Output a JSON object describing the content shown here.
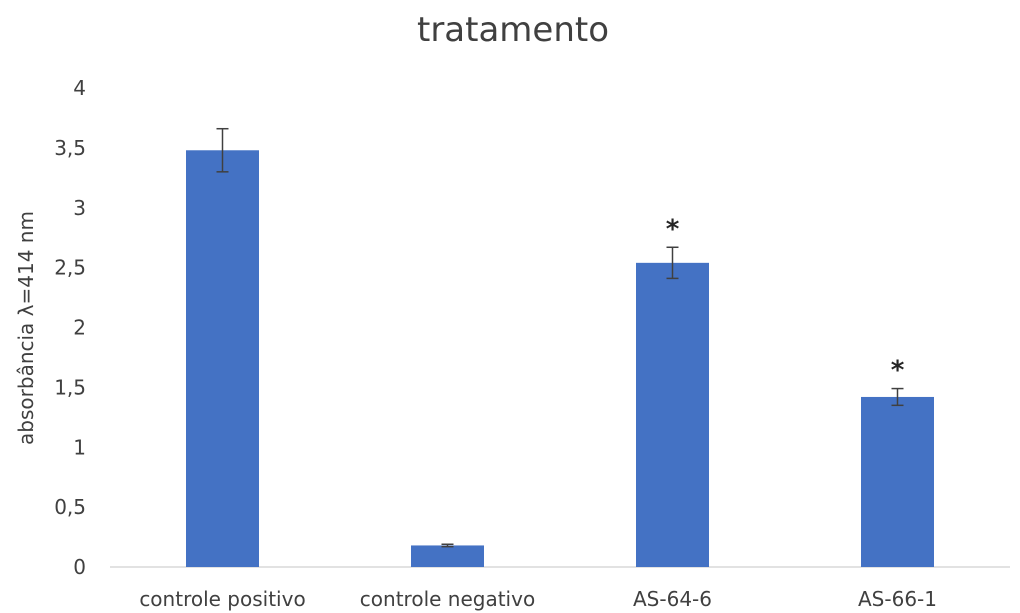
{
  "chart_data": {
    "type": "bar",
    "title": "tratamento",
    "xlabel": "",
    "ylabel": "absorbância λ=414 nm",
    "categories": [
      "controle positivo",
      "controle negativo",
      "AS-64-6",
      "AS-66-1"
    ],
    "values": [
      3.48,
      0.18,
      2.54,
      1.42
    ],
    "errors": [
      0.18,
      0.01,
      0.13,
      0.07
    ],
    "annotations": [
      "",
      "",
      "*",
      "*"
    ],
    "ylim": [
      0,
      4
    ],
    "yticks": [
      0,
      0.5,
      1,
      1.5,
      2,
      2.5,
      3,
      3.5,
      4
    ],
    "ytick_labels": [
      "0",
      "0,5",
      "1",
      "1,5",
      "2",
      "2,5",
      "3",
      "3,5",
      "4"
    ],
    "grid": false,
    "legend": "none",
    "colors": {
      "bar": "#4472c4",
      "error_bar": "#404040",
      "axis": "#d9d9d9",
      "text": "#404040"
    }
  }
}
